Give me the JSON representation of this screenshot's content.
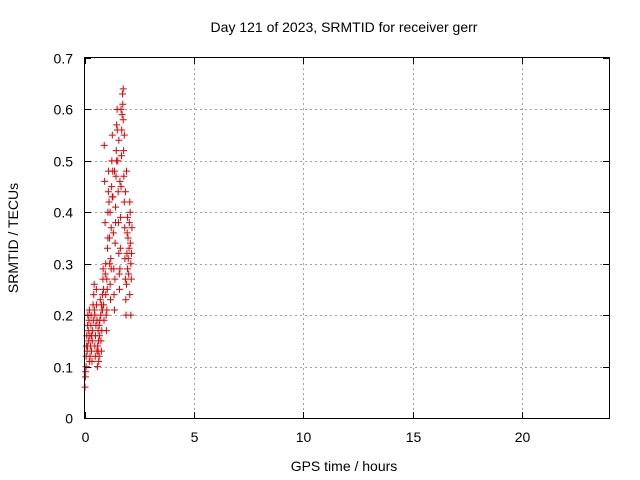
{
  "chart_data": {
    "type": "scatter",
    "title": "Day 121 of 2023, SRMTID for receiver gerr",
    "xlabel": "GPS time / hours",
    "ylabel": "SRMTID / TECUs",
    "xlim": [
      0,
      24
    ],
    "ylim": [
      0,
      0.7
    ],
    "xticks": [
      0,
      5,
      10,
      15,
      20
    ],
    "yticks": [
      0,
      0.1,
      0.2,
      0.3,
      0.4,
      0.5,
      0.6,
      0.7
    ],
    "xtick_labels": [
      "0",
      "5",
      "10",
      "15",
      "20"
    ],
    "ytick_labels": [
      "0",
      "0.1",
      "0.2",
      "0.3",
      "0.4",
      "0.5",
      "0.6",
      "0.7"
    ],
    "grid": true,
    "marker": "+",
    "color": "#e00000",
    "series": [
      {
        "name": "gerr",
        "points": [
          [
            0.0,
            0.06
          ],
          [
            0.02,
            0.08
          ],
          [
            0.03,
            0.09
          ],
          [
            0.05,
            0.12
          ],
          [
            0.06,
            0.14
          ],
          [
            0.08,
            0.16
          ],
          [
            0.1,
            0.13
          ],
          [
            0.12,
            0.18
          ],
          [
            0.13,
            0.2
          ],
          [
            0.15,
            0.17
          ],
          [
            0.17,
            0.15
          ],
          [
            0.18,
            0.19
          ],
          [
            0.2,
            0.21
          ],
          [
            0.22,
            0.16
          ],
          [
            0.23,
            0.12
          ],
          [
            0.25,
            0.14
          ],
          [
            0.27,
            0.18
          ],
          [
            0.28,
            0.2
          ],
          [
            0.3,
            0.13
          ],
          [
            0.32,
            0.11
          ],
          [
            0.33,
            0.15
          ],
          [
            0.35,
            0.17
          ],
          [
            0.37,
            0.22
          ],
          [
            0.38,
            0.19
          ],
          [
            0.4,
            0.24
          ],
          [
            0.42,
            0.26
          ],
          [
            0.43,
            0.21
          ],
          [
            0.45,
            0.14
          ],
          [
            0.47,
            0.12
          ],
          [
            0.48,
            0.16
          ],
          [
            0.5,
            0.18
          ],
          [
            0.52,
            0.25
          ],
          [
            0.53,
            0.22
          ],
          [
            0.55,
            0.13
          ],
          [
            0.57,
            0.1
          ],
          [
            0.58,
            0.14
          ],
          [
            0.6,
            0.17
          ],
          [
            0.62,
            0.15
          ],
          [
            0.63,
            0.11
          ],
          [
            0.65,
            0.12
          ],
          [
            0.67,
            0.16
          ],
          [
            0.68,
            0.19
          ],
          [
            0.7,
            0.23
          ],
          [
            0.72,
            0.2
          ],
          [
            0.73,
            0.15
          ],
          [
            0.75,
            0.13
          ],
          [
            0.77,
            0.17
          ],
          [
            0.78,
            0.21
          ],
          [
            0.8,
            0.24
          ],
          [
            0.82,
            0.27
          ],
          [
            0.83,
            0.29
          ],
          [
            0.85,
            0.22
          ],
          [
            0.87,
            0.19
          ],
          [
            0.88,
            0.53
          ],
          [
            0.9,
            0.46
          ],
          [
            0.92,
            0.38
          ],
          [
            0.93,
            0.28
          ],
          [
            0.95,
            0.24
          ],
          [
            0.97,
            0.2
          ],
          [
            0.98,
            0.17
          ],
          [
            1.0,
            0.21
          ],
          [
            1.02,
            0.25
          ],
          [
            1.03,
            0.33
          ],
          [
            1.05,
            0.4
          ],
          [
            1.07,
            0.44
          ],
          [
            1.08,
            0.48
          ],
          [
            1.1,
            0.42
          ],
          [
            1.12,
            0.35
          ],
          [
            1.13,
            0.3
          ],
          [
            1.15,
            0.26
          ],
          [
            1.17,
            0.23
          ],
          [
            1.18,
            0.31
          ],
          [
            1.2,
            0.37
          ],
          [
            1.22,
            0.45
          ],
          [
            1.23,
            0.5
          ],
          [
            1.25,
            0.55
          ],
          [
            1.27,
            0.48
          ],
          [
            1.28,
            0.43
          ],
          [
            1.3,
            0.36
          ],
          [
            1.32,
            0.29
          ],
          [
            1.33,
            0.24
          ],
          [
            1.35,
            0.21
          ],
          [
            1.37,
            0.27
          ],
          [
            1.38,
            0.34
          ],
          [
            1.4,
            0.41
          ],
          [
            1.42,
            0.47
          ],
          [
            1.43,
            0.52
          ],
          [
            1.45,
            0.57
          ],
          [
            1.47,
            0.6
          ],
          [
            1.48,
            0.56
          ],
          [
            1.5,
            0.5
          ],
          [
            1.52,
            0.44
          ],
          [
            1.53,
            0.38
          ],
          [
            1.55,
            0.32
          ],
          [
            1.57,
            0.28
          ],
          [
            1.58,
            0.25
          ],
          [
            1.6,
            0.29
          ],
          [
            1.62,
            0.33
          ],
          [
            1.63,
            0.39
          ],
          [
            1.65,
            0.45
          ],
          [
            1.67,
            0.51
          ],
          [
            1.68,
            0.56
          ],
          [
            1.7,
            0.59
          ],
          [
            1.72,
            0.63
          ],
          [
            1.73,
            0.61
          ],
          [
            1.75,
            0.58
          ],
          [
            1.77,
            0.52
          ],
          [
            1.78,
            0.47
          ],
          [
            1.8,
            0.42
          ],
          [
            1.82,
            0.37
          ],
          [
            1.83,
            0.31
          ],
          [
            1.85,
            0.27
          ],
          [
            1.87,
            0.23
          ],
          [
            1.88,
            0.2
          ],
          [
            1.9,
            0.26
          ],
          [
            1.92,
            0.32
          ],
          [
            1.93,
            0.36
          ],
          [
            1.95,
            0.39
          ],
          [
            1.97,
            0.35
          ],
          [
            1.98,
            0.31
          ],
          [
            2.0,
            0.28
          ],
          [
            2.02,
            0.33
          ],
          [
            2.03,
            0.38
          ],
          [
            2.05,
            0.42
          ],
          [
            2.07,
            0.4
          ],
          [
            2.08,
            0.34
          ],
          [
            2.1,
            0.3
          ],
          [
            2.12,
            0.27
          ],
          [
            2.13,
            0.32
          ],
          [
            2.15,
            0.37
          ],
          [
            0.05,
            0.1
          ],
          [
            0.12,
            0.14
          ],
          [
            0.2,
            0.11
          ],
          [
            0.3,
            0.16
          ],
          [
            0.45,
            0.2
          ],
          [
            0.55,
            0.19
          ],
          [
            0.65,
            0.18
          ],
          [
            0.75,
            0.22
          ],
          [
            0.85,
            0.25
          ],
          [
            0.95,
            0.3
          ],
          [
            1.05,
            0.35
          ],
          [
            1.15,
            0.4
          ],
          [
            1.25,
            0.43
          ],
          [
            1.35,
            0.48
          ],
          [
            1.45,
            0.5
          ],
          [
            1.55,
            0.54
          ],
          [
            1.65,
            0.6
          ],
          [
            1.75,
            0.64
          ],
          [
            1.85,
            0.44
          ],
          [
            1.95,
            0.29
          ],
          [
            2.05,
            0.24
          ],
          [
            2.1,
            0.2
          ],
          [
            1.9,
            0.48
          ],
          [
            1.8,
            0.55
          ],
          [
            1.6,
            0.46
          ],
          [
            1.4,
            0.38
          ],
          [
            1.2,
            0.29
          ],
          [
            1.0,
            0.27
          ],
          [
            0.8,
            0.21
          ],
          [
            0.6,
            0.13
          ]
        ]
      }
    ]
  }
}
